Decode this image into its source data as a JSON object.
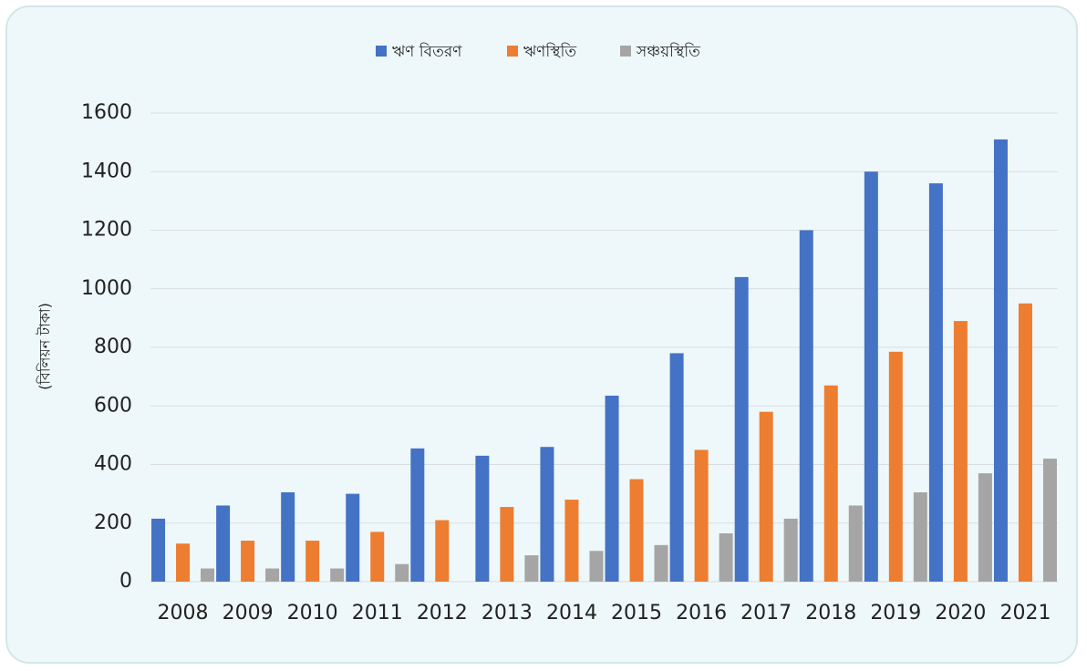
{
  "chart_data": {
    "type": "bar",
    "title": "",
    "xlabel": "",
    "ylabel": "(বিলিয়ন টাকা)",
    "ylim": [
      0,
      1600
    ],
    "yticks": [
      0,
      200,
      400,
      600,
      800,
      1000,
      1200,
      1400,
      1600
    ],
    "grid": true,
    "legend_position": "top-center",
    "categories": [
      "2008",
      "2009",
      "2010",
      "2011",
      "2012",
      "2013",
      "2014",
      "2015",
      "2016",
      "2017",
      "2018",
      "2019",
      "2020",
      "2021"
    ],
    "series": [
      {
        "name": "ঋণ বিতরণ",
        "color": "#4472c4",
        "values": [
          215,
          260,
          305,
          300,
          455,
          430,
          460,
          635,
          780,
          1040,
          1200,
          1400,
          1360,
          1510
        ]
      },
      {
        "name": "ঋণস্থিতি",
        "color": "#ed7d31",
        "values": [
          130,
          140,
          140,
          170,
          210,
          255,
          280,
          350,
          450,
          580,
          670,
          785,
          890,
          950
        ]
      },
      {
        "name": "সঞ্চয়স্থিতি",
        "color": "#a5a5a5",
        "values": [
          45,
          45,
          45,
          60,
          0,
          90,
          105,
          125,
          165,
          215,
          260,
          305,
          370,
          420
        ]
      }
    ]
  }
}
